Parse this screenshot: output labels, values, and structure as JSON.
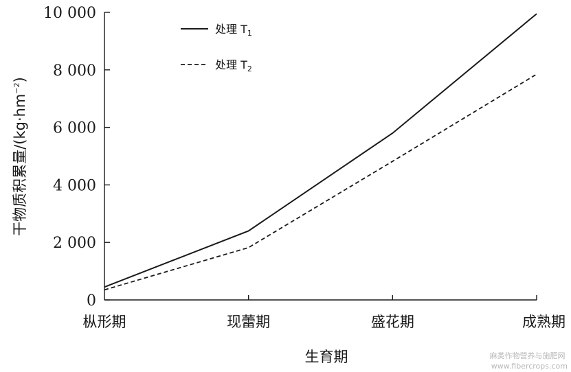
{
  "chart_data": {
    "type": "line",
    "title": "",
    "xlabel": "生育期",
    "ylabel": "干物质积累量/(kg·hm⁻²)",
    "ylabel_main": "干物质积累量/(kg·hm",
    "ylabel_sup": "−2",
    "ylabel_close": ")",
    "categories": [
      "枞形期",
      "现蕾期",
      "盛花期",
      "成熟期"
    ],
    "ylim": [
      0,
      10000
    ],
    "yticks": [
      0,
      2000,
      4000,
      6000,
      8000,
      10000
    ],
    "ytick_labels": [
      "0",
      "2 000",
      "4 000",
      "6 000",
      "8 000",
      "10 000"
    ],
    "series": [
      {
        "name": "处理 T1",
        "name_main": "处理 T",
        "name_sub": "1",
        "style": "solid",
        "values": [
          450,
          2400,
          5800,
          9950
        ]
      },
      {
        "name": "处理 T2",
        "name_main": "处理 T",
        "name_sub": "2",
        "style": "dashed",
        "values": [
          350,
          1820,
          4820,
          7850
        ]
      }
    ],
    "legend_position": "top-left",
    "grid": false,
    "colors": {
      "line": "#1a1a1a",
      "axis": "#1a1a1a"
    }
  },
  "watermark": "麻类作物营养与施肥网\nwww.fibercrops.com"
}
